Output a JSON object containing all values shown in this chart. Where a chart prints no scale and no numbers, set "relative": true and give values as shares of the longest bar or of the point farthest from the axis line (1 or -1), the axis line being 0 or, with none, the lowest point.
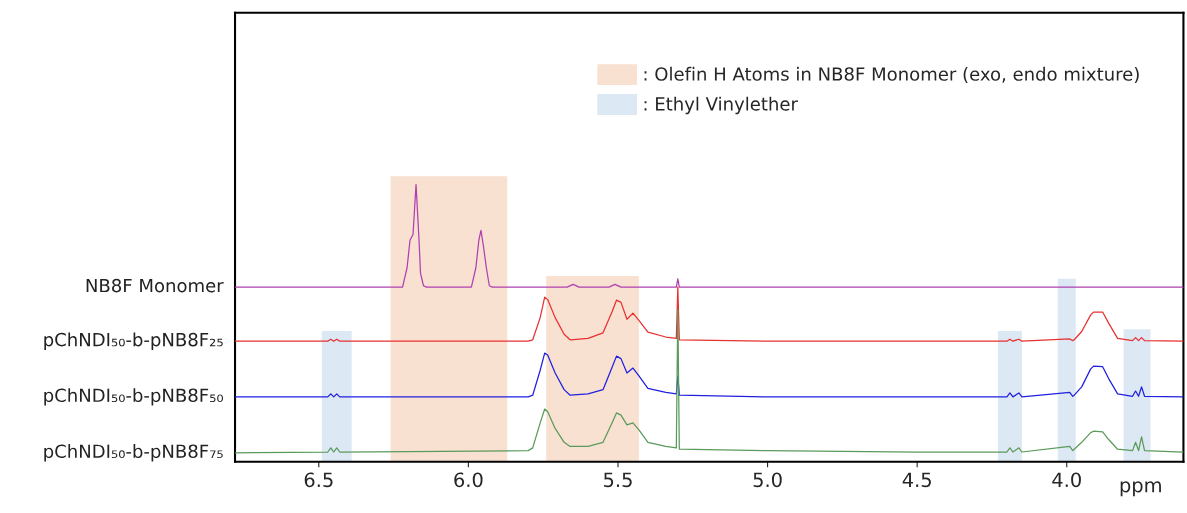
{
  "chart_data": {
    "type": "line",
    "relative": true,
    "xlabel": "ppm",
    "xlim": [
      6.78,
      3.61
    ],
    "xticks": [
      {
        "value": 6.5,
        "label": "6.5"
      },
      {
        "value": 6.0,
        "label": "6.0"
      },
      {
        "value": 5.5,
        "label": "5.5"
      },
      {
        "value": 5.0,
        "label": "5.0"
      },
      {
        "value": 4.5,
        "label": "4.5"
      },
      {
        "value": 4.0,
        "label": "4.0"
      }
    ],
    "grid": false,
    "legend": "top right",
    "tick_labels": "x",
    "bands": [
      {
        "axis": "x",
        "from": 6.26,
        "to": 5.87,
        "label": ": Olefin H Atoms in NB8F Monomer (exo, endo mixture)",
        "color": "#f9e1d2"
      },
      {
        "axis": "x",
        "from": 5.74,
        "to": 5.43,
        "color": "#f9e1d2"
      },
      {
        "axis": "x",
        "from": 6.49,
        "to": 6.39,
        "label": ": Ethyl Vinylether",
        "color": "#dce8f4"
      },
      {
        "axis": "x",
        "from": 4.23,
        "to": 4.15,
        "color": "#dce8f4"
      },
      {
        "axis": "x",
        "from": 4.03,
        "to": 3.97,
        "color": "#dce8f4"
      },
      {
        "axis": "x",
        "from": 3.81,
        "to": 3.72,
        "color": "#dce8f4"
      }
    ],
    "series": [
      {
        "name": "NB8F Monomer",
        "color": "#b040b0",
        "x": [
          6.78,
          6.5,
          6.22,
          6.205,
          6.195,
          6.185,
          6.175,
          6.165,
          6.16,
          6.15,
          6.14,
          5.99,
          5.975,
          5.965,
          5.958,
          5.95,
          5.94,
          5.93,
          5.92,
          5.67,
          5.65,
          5.63,
          5.53,
          5.51,
          5.49,
          5.305,
          5.3,
          5.295,
          5.0,
          4.5,
          4.0,
          3.61
        ],
        "values": [
          0.63,
          0.63,
          0.63,
          0.7,
          0.8,
          0.82,
          1.0,
          0.8,
          0.68,
          0.635,
          0.63,
          0.63,
          0.7,
          0.8,
          0.835,
          0.78,
          0.7,
          0.635,
          0.63,
          0.63,
          0.64,
          0.63,
          0.63,
          0.64,
          0.63,
          0.63,
          0.66,
          0.63,
          0.63,
          0.63,
          0.63,
          0.63
        ]
      },
      {
        "name": "pChNDI₅₀-b-pNB8F₂₅",
        "color": "#e83030",
        "x": [
          6.78,
          6.47,
          6.46,
          6.45,
          6.44,
          6.43,
          5.8,
          5.785,
          5.76,
          5.745,
          5.735,
          5.71,
          5.68,
          5.66,
          5.6,
          5.55,
          5.52,
          5.505,
          5.49,
          5.47,
          5.45,
          5.43,
          5.4,
          5.34,
          5.305,
          5.3,
          5.295,
          5.0,
          4.5,
          4.2,
          4.19,
          4.18,
          4.16,
          4.15,
          3.99,
          3.98,
          3.975,
          3.95,
          3.92,
          3.91,
          3.88,
          3.86,
          3.83,
          3.78,
          3.77,
          3.76,
          3.75,
          3.74,
          3.61
        ],
        "values": [
          0.435,
          0.435,
          0.442,
          0.435,
          0.442,
          0.435,
          0.435,
          0.44,
          0.52,
          0.594,
          0.585,
          0.52,
          0.46,
          0.44,
          0.445,
          0.465,
          0.54,
          0.583,
          0.575,
          0.514,
          0.536,
          0.51,
          0.468,
          0.45,
          0.445,
          0.63,
          0.44,
          0.435,
          0.435,
          0.435,
          0.442,
          0.435,
          0.442,
          0.435,
          0.443,
          0.437,
          0.44,
          0.47,
          0.53,
          0.54,
          0.54,
          0.5,
          0.445,
          0.437,
          0.448,
          0.437,
          0.448,
          0.437,
          0.435
        ]
      },
      {
        "name": "pChNDI₅₀-b-pNB8F₅₀",
        "color": "#2020e0",
        "x": [
          6.78,
          6.47,
          6.46,
          6.45,
          6.44,
          6.43,
          5.8,
          5.785,
          5.76,
          5.745,
          5.735,
          5.71,
          5.68,
          5.66,
          5.6,
          5.55,
          5.52,
          5.505,
          5.49,
          5.47,
          5.45,
          5.43,
          5.4,
          5.34,
          5.305,
          5.3,
          5.295,
          5.0,
          4.5,
          4.2,
          4.19,
          4.18,
          4.16,
          4.15,
          3.99,
          3.98,
          3.975,
          3.95,
          3.92,
          3.91,
          3.88,
          3.86,
          3.83,
          3.78,
          3.77,
          3.76,
          3.75,
          3.74,
          3.61
        ],
        "values": [
          0.234,
          0.234,
          0.245,
          0.234,
          0.245,
          0.234,
          0.234,
          0.24,
          0.33,
          0.392,
          0.385,
          0.32,
          0.26,
          0.24,
          0.245,
          0.26,
          0.34,
          0.381,
          0.372,
          0.32,
          0.338,
          0.31,
          0.265,
          0.25,
          0.245,
          0.31,
          0.24,
          0.234,
          0.234,
          0.234,
          0.248,
          0.234,
          0.248,
          0.234,
          0.25,
          0.236,
          0.24,
          0.27,
          0.335,
          0.345,
          0.343,
          0.3,
          0.245,
          0.236,
          0.255,
          0.236,
          0.27,
          0.236,
          0.234
        ]
      },
      {
        "name": "pChNDI₅₀-b-pNB8F₇₅",
        "color": "#5a9a5a",
        "x": [
          6.78,
          6.47,
          6.46,
          6.45,
          6.44,
          6.43,
          5.8,
          5.785,
          5.76,
          5.745,
          5.735,
          5.71,
          5.68,
          5.66,
          5.6,
          5.55,
          5.52,
          5.505,
          5.49,
          5.47,
          5.45,
          5.43,
          5.4,
          5.34,
          5.305,
          5.3,
          5.295,
          5.0,
          4.5,
          4.2,
          4.19,
          4.18,
          4.16,
          4.15,
          3.99,
          3.98,
          3.975,
          3.95,
          3.92,
          3.91,
          3.88,
          3.86,
          3.83,
          3.78,
          3.77,
          3.76,
          3.75,
          3.74,
          3.61
        ],
        "values": [
          0.032,
          0.035,
          0.05,
          0.035,
          0.05,
          0.035,
          0.04,
          0.05,
          0.14,
          0.19,
          0.18,
          0.12,
          0.07,
          0.055,
          0.055,
          0.07,
          0.14,
          0.176,
          0.168,
          0.133,
          0.14,
          0.115,
          0.07,
          0.055,
          0.05,
          0.55,
          0.045,
          0.04,
          0.035,
          0.035,
          0.05,
          0.035,
          0.05,
          0.035,
          0.055,
          0.04,
          0.045,
          0.07,
          0.105,
          0.11,
          0.108,
          0.08,
          0.045,
          0.04,
          0.07,
          0.04,
          0.09,
          0.04,
          0.035
        ]
      }
    ]
  }
}
